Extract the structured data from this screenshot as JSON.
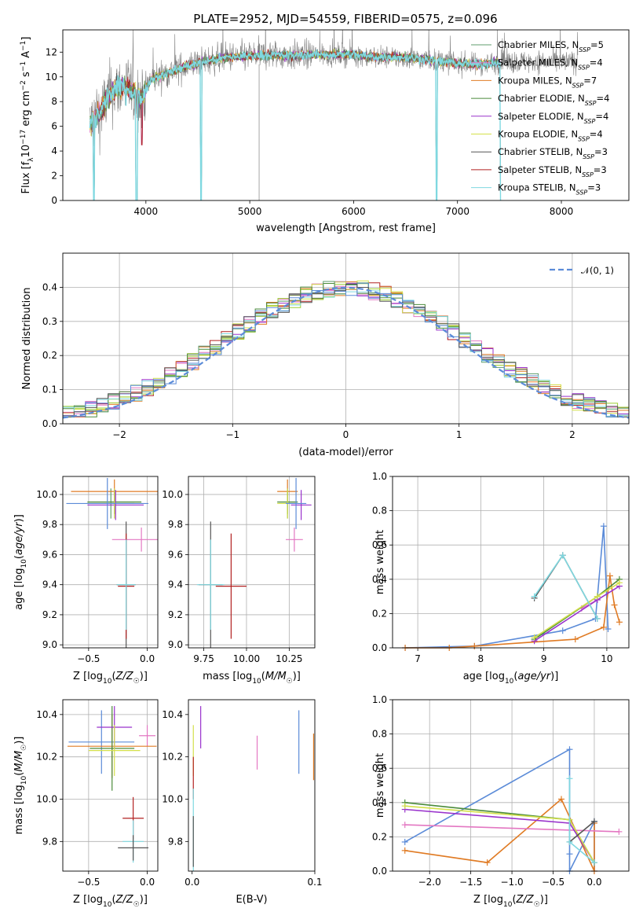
{
  "figure": {
    "title": "PLATE=2952, MJD=54559, FIBERID=0575, z=0.096"
  },
  "series_colors": {
    "Chabrier MILES": "#5f9e6e",
    "Salpeter MILES": "#e377c2",
    "Kroupa MILES": "#e07b24",
    "Chabrier ELODIE": "#4b8b3b",
    "Salpeter ELODIE": "#9932cc",
    "Kroupa ELODIE": "#d4e04a",
    "Chabrier STELIB": "#555555",
    "Salpeter STELIB": "#b22222",
    "Kroupa STELIB": "#7fd8e0",
    "data": "#808080",
    "extra_blue": "#5b8bd8",
    "extra_lime": "#9acd32"
  },
  "chart_data": [
    {
      "id": "spectrum",
      "type": "line",
      "xlabel": "wavelength [Angstrom, rest frame]",
      "ylabel": "Flux [f_λ10^-17 erg cm^-2 s^-1 A^-1]",
      "xlim": [
        3200,
        8650
      ],
      "ylim": [
        0,
        13.8
      ],
      "xticks": [
        4000,
        5000,
        6000,
        7000,
        8000
      ],
      "yticks": [
        0,
        2,
        4,
        6,
        8,
        10,
        12
      ],
      "grid": false,
      "legend_position": "right",
      "legend": [
        {
          "label": "Chabrier MILES, N_SSP=5"
        },
        {
          "label": "Salpeter MILES, N_SSP=4"
        },
        {
          "label": "Kroupa MILES, N_SSP=7"
        },
        {
          "label": "Chabrier ELODIE, N_SSP=4"
        },
        {
          "label": "Salpeter ELODIE, N_SSP=4"
        },
        {
          "label": "Kroupa ELODIE, N_SSP=4"
        },
        {
          "label": "Chabrier STELIB, N_SSP=3"
        },
        {
          "label": "Salpeter STELIB, N_SSP=3"
        },
        {
          "label": "Kroupa STELIB, N_SSP=3"
        }
      ],
      "continuum": [
        [
          3460,
          6.2
        ],
        [
          3550,
          7.0
        ],
        [
          3650,
          8.6
        ],
        [
          3750,
          9.2
        ],
        [
          3850,
          9.0
        ],
        [
          3950,
          8.2
        ],
        [
          4050,
          9.8
        ],
        [
          4200,
          10.3
        ],
        [
          4400,
          10.9
        ],
        [
          4600,
          11.3
        ],
        [
          4800,
          11.6
        ],
        [
          5000,
          11.7
        ],
        [
          5200,
          11.8
        ],
        [
          5400,
          11.7
        ],
        [
          5600,
          11.8
        ],
        [
          5800,
          11.8
        ],
        [
          6000,
          11.8
        ],
        [
          6200,
          11.6
        ],
        [
          6400,
          11.6
        ],
        [
          6600,
          11.5
        ],
        [
          6800,
          11.3
        ],
        [
          7000,
          11.1
        ],
        [
          7200,
          11.0
        ],
        [
          7420,
          11.2
        ]
      ],
      "dips": [
        {
          "x": 3500,
          "to": 0
        },
        {
          "x": 3910,
          "to": 0
        },
        {
          "x": 3960,
          "to": 4.5
        },
        {
          "x": 4530,
          "to": 0
        },
        {
          "x": 6800,
          "to": 0
        },
        {
          "x": 7420,
          "to": 0
        }
      ]
    },
    {
      "id": "residuals",
      "type": "histogram",
      "xlabel": "(data-model)/error",
      "ylabel": "Normed distribution",
      "xlim": [
        -2.5,
        2.5
      ],
      "ylim": [
        0,
        0.5
      ],
      "xticks": [
        -2,
        -1,
        0,
        1,
        2
      ],
      "yticks": [
        0.0,
        0.1,
        0.2,
        0.3,
        0.4
      ],
      "grid": true,
      "legend_position": "top-right",
      "legend": [
        {
          "label": "𝒩(0, 1)"
        }
      ],
      "bin_edges": [
        -2.5,
        -2.4,
        -2.3,
        -2.2,
        -2.1,
        -2.0,
        -1.9,
        -1.8,
        -1.7,
        -1.6,
        -1.5,
        -1.4,
        -1.3,
        -1.2,
        -1.1,
        -1.0,
        -0.9,
        -0.8,
        -0.7,
        -0.6,
        -0.5,
        -0.4,
        -0.3,
        -0.2,
        -0.1,
        0.0,
        0.1,
        0.2,
        0.3,
        0.4,
        0.5,
        0.6,
        0.7,
        0.8,
        0.9,
        1.0,
        1.1,
        1.2,
        1.3,
        1.4,
        1.5,
        1.6,
        1.7,
        1.8,
        1.9,
        2.0,
        2.1,
        2.2,
        2.3,
        2.4,
        2.5
      ]
    },
    {
      "id": "age_vs_Z",
      "type": "errorbar",
      "xlabel": "Z [log10(Z/Z☉)]",
      "ylabel": "age [log10(age/yr)]",
      "xlim": [
        -0.72,
        0.09
      ],
      "ylim": [
        8.98,
        10.12
      ],
      "xticks": [
        -0.5,
        0.0
      ],
      "xticklabels": [
        "−0.5",
        "0.0"
      ],
      "yticks": [
        9.0,
        9.2,
        9.4,
        9.6,
        9.8,
        10.0
      ],
      "grid": true,
      "points": [
        {
          "c": "Chabrier MILES",
          "x": -0.31,
          "y": 9.94,
          "xerr": 0.2,
          "yerr": 0.1
        },
        {
          "c": "Salpeter MILES",
          "x": -0.05,
          "y": 9.7,
          "xerr": 0.25,
          "yerr": 0.08
        },
        {
          "c": "Kroupa MILES",
          "x": -0.28,
          "y": 10.02,
          "xerr": 0.37,
          "yerr": 0.08
        },
        {
          "c": "Chabrier ELODIE",
          "x": -0.28,
          "y": 9.95,
          "xerr": 0.23,
          "yerr": 0.08
        },
        {
          "c": "Salpeter ELODIE",
          "x": -0.27,
          "y": 9.93,
          "xerr": 0.24,
          "yerr": 0.1
        },
        {
          "c": "Kroupa ELODIE",
          "x": -0.28,
          "y": 9.94,
          "xerr": 0.24,
          "yerr": 0.1
        },
        {
          "c": "Chabrier STELIB",
          "x": -0.18,
          "y": 9.4,
          "xerr": 0.08,
          "yerr": 0.42
        },
        {
          "c": "Salpeter STELIB",
          "x": -0.18,
          "y": 9.39,
          "xerr": 0.07,
          "yerr": 0.35
        },
        {
          "c": "Kroupa STELIB",
          "x": -0.18,
          "y": 9.4,
          "xerr": 0.08,
          "yerr": 0.3
        },
        {
          "c": "extra_blue",
          "x": -0.34,
          "y": 9.94,
          "xerr": 0.35,
          "yerr": 0.17
        }
      ]
    },
    {
      "id": "age_vs_mass",
      "type": "errorbar",
      "xlabel": "mass [log10(M/M☉)]",
      "ylabel": "",
      "xlim": [
        9.66,
        10.4
      ],
      "ylim": [
        8.98,
        10.12
      ],
      "xticks": [
        9.75,
        10.0,
        10.25
      ],
      "xticklabels": [
        "9.75",
        "10.00",
        "10.25"
      ],
      "yticks": [
        9.0,
        9.2,
        9.4,
        9.6,
        9.8,
        10.0
      ],
      "grid": true,
      "points": [
        {
          "c": "Chabrier MILES",
          "x": 10.24,
          "y": 9.94,
          "xerr": 0.05,
          "yerr": 0.1
        },
        {
          "c": "Salpeter MILES",
          "x": 10.28,
          "y": 9.7,
          "xerr": 0.05,
          "yerr": 0.08
        },
        {
          "c": "Kroupa MILES",
          "x": 10.24,
          "y": 10.02,
          "xerr": 0.06,
          "yerr": 0.08
        },
        {
          "c": "Chabrier ELODIE",
          "x": 10.24,
          "y": 9.95,
          "xerr": 0.06,
          "yerr": 0.08
        },
        {
          "c": "Salpeter ELODIE",
          "x": 10.32,
          "y": 9.93,
          "xerr": 0.06,
          "yerr": 0.1
        },
        {
          "c": "Kroupa ELODIE",
          "x": 10.24,
          "y": 9.94,
          "xerr": 0.06,
          "yerr": 0.1
        },
        {
          "c": "Chabrier STELIB",
          "x": 9.79,
          "y": 9.4,
          "xerr": 0.07,
          "yerr": 0.42
        },
        {
          "c": "Salpeter STELIB",
          "x": 9.91,
          "y": 9.39,
          "xerr": 0.09,
          "yerr": 0.35
        },
        {
          "c": "Kroupa STELIB",
          "x": 9.79,
          "y": 9.4,
          "xerr": 0.08,
          "yerr": 0.3
        },
        {
          "c": "extra_blue",
          "x": 10.29,
          "y": 9.94,
          "xerr": 0.06,
          "yerr": 0.17
        }
      ]
    },
    {
      "id": "weight_vs_age",
      "type": "line",
      "xlabel": "age [log10(age/yr)]",
      "ylabel": "mass weight",
      "xlim": [
        6.6,
        10.35
      ],
      "ylim": [
        0,
        1
      ],
      "xticks": [
        7,
        8,
        9,
        10
      ],
      "yticks": [
        0.0,
        0.2,
        0.4,
        0.6,
        0.8,
        1.0
      ],
      "grid": true,
      "series": [
        {
          "c": "extra_blue",
          "x": [
            6.8,
            7.9,
            9.3,
            9.82,
            9.95,
            10.02
          ],
          "y": [
            0,
            0.01,
            0.1,
            0.17,
            0.71,
            0.11
          ]
        },
        {
          "c": "Kroupa MILES",
          "x": [
            6.8,
            7.5,
            7.9,
            9.5,
            9.95,
            10.05,
            10.12,
            10.2
          ],
          "y": [
            0,
            0,
            0.01,
            0.05,
            0.12,
            0.42,
            0.25,
            0.15
          ]
        },
        {
          "c": "Salpeter MILES",
          "x": [
            9.6,
            9.85
          ],
          "y": [
            0.23,
            0.28
          ]
        },
        {
          "c": "Chabrier ELODIE",
          "x": [
            8.85,
            9.85,
            10.2
          ],
          "y": [
            0.05,
            0.3,
            0.4
          ]
        },
        {
          "c": "Salpeter ELODIE",
          "x": [
            8.85,
            9.85,
            10.2
          ],
          "y": [
            0.04,
            0.28,
            0.36
          ]
        },
        {
          "c": "Kroupa ELODIE",
          "x": [
            8.85,
            9.85,
            10.2
          ],
          "y": [
            0.06,
            0.3,
            0.38
          ]
        },
        {
          "c": "Chabrier STELIB",
          "x": [
            8.85,
            9.3,
            9.85
          ],
          "y": [
            0.29,
            0.54,
            0.17
          ]
        },
        {
          "c": "Kroupa STELIB",
          "x": [
            8.85,
            9.3,
            9.85
          ],
          "y": [
            0.3,
            0.54,
            0.17
          ]
        }
      ]
    },
    {
      "id": "mass_vs_Z",
      "type": "errorbar",
      "xlabel": "Z [log10(Z/Z☉)]",
      "ylabel": "mass [log10(M/M☉)]",
      "xlim": [
        -0.72,
        0.09
      ],
      "ylim": [
        9.66,
        10.47
      ],
      "xticks": [
        -0.5,
        0.0
      ],
      "xticklabels": [
        "−0.5",
        "0.0"
      ],
      "yticks": [
        9.8,
        10.0,
        10.2,
        10.4
      ],
      "grid": true,
      "points": [
        {
          "c": "extra_blue",
          "x": -0.39,
          "y": 10.27,
          "xerr": 0.28,
          "yerr": 0.15
        },
        {
          "c": "Salpeter MILES",
          "x": 0.0,
          "y": 10.3,
          "xerr": 0.07,
          "yerr": 0.05
        },
        {
          "c": "Kroupa MILES",
          "x": -0.3,
          "y": 10.25,
          "xerr": 0.38,
          "yerr": 0.15
        },
        {
          "c": "Chabrier ELODIE",
          "x": -0.3,
          "y": 10.24,
          "xerr": 0.19,
          "yerr": 0.2
        },
        {
          "c": "Salpeter ELODIE",
          "x": -0.28,
          "y": 10.34,
          "xerr": 0.15,
          "yerr": 0.1
        },
        {
          "c": "Kroupa ELODIE",
          "x": -0.28,
          "y": 10.23,
          "xerr": 0.22,
          "yerr": 0.12
        },
        {
          "c": "Salpeter STELIB",
          "x": -0.12,
          "y": 9.91,
          "xerr": 0.09,
          "yerr": 0.1
        },
        {
          "c": "Kroupa STELIB",
          "x": -0.12,
          "y": 9.8,
          "xerr": 0.09,
          "yerr": 0.1
        },
        {
          "c": "Chabrier STELIB",
          "x": -0.12,
          "y": 9.77,
          "xerr": 0.13,
          "yerr": 0.06
        }
      ]
    },
    {
      "id": "mass_vs_EBV",
      "type": "errorbar",
      "xlabel": "E(B-V)",
      "ylabel": "",
      "xlim": [
        -0.003,
        0.1
      ],
      "ylim": [
        9.66,
        10.47
      ],
      "xticks": [
        0.0,
        0.1
      ],
      "xticklabels": [
        "0.0",
        "0.1"
      ],
      "yticks": [
        9.8,
        10.0,
        10.2,
        10.4
      ],
      "grid": false,
      "points": [
        {
          "c": "Salpeter ELODIE",
          "x": 0.007,
          "y": 10.34,
          "yerr": 0.1
        },
        {
          "c": "Kroupa ELODIE",
          "x": 0.001,
          "y": 10.23,
          "yerr": 0.12
        },
        {
          "c": "Salpeter MILES",
          "x": 0.053,
          "y": 10.22,
          "yerr": 0.08
        },
        {
          "c": "extra_blue",
          "x": 0.087,
          "y": 10.27,
          "yerr": 0.15
        },
        {
          "c": "Kroupa MILES",
          "x": 0.099,
          "y": 10.2,
          "yerr": 0.11
        },
        {
          "c": "Salpeter STELIB",
          "x": 0.001,
          "y": 10.1,
          "yerr": 0.1
        },
        {
          "c": "Kroupa STELIB",
          "x": 0.001,
          "y": 9.85,
          "yerr": 0.2
        },
        {
          "c": "Chabrier STELIB",
          "x": 0.001,
          "y": 9.8,
          "yerr": 0.12
        }
      ]
    },
    {
      "id": "weight_vs_Z",
      "type": "line",
      "xlabel": "Z [log10(Z/Z☉)]",
      "ylabel": "mass weight",
      "xlim": [
        -2.45,
        0.42
      ],
      "ylim": [
        0,
        1
      ],
      "xticks": [
        -2.0,
        -1.5,
        -1.0,
        -0.5,
        0.0
      ],
      "xticklabels": [
        "−2.0",
        "−1.5",
        "−1.0",
        "−0.5",
        "0.0"
      ],
      "yticks": [
        0.0,
        0.2,
        0.4,
        0.6,
        0.8,
        1.0
      ],
      "grid": true,
      "series": [
        {
          "c": "extra_blue",
          "x": [
            -2.3,
            -0.3,
            -0.3,
            -0.3,
            0.0,
            0.0
          ],
          "y": [
            0.17,
            0.71,
            0.1,
            0.0,
            0.29,
            0.0
          ]
        },
        {
          "c": "Kroupa MILES",
          "x": [
            -2.3,
            -1.3,
            -0.4,
            0.0,
            0.0
          ],
          "y": [
            0.12,
            0.05,
            0.42,
            0.0,
            0.28
          ]
        },
        {
          "c": "Salpeter MILES",
          "x": [
            -2.3,
            0.3
          ],
          "y": [
            0.27,
            0.23
          ]
        },
        {
          "c": "Chabrier ELODIE",
          "x": [
            -2.3,
            -0.3,
            0.0
          ],
          "y": [
            0.4,
            0.3,
            0.05
          ]
        },
        {
          "c": "Salpeter ELODIE",
          "x": [
            -2.3,
            -0.3,
            0.0
          ],
          "y": [
            0.36,
            0.28,
            0.05
          ]
        },
        {
          "c": "Kroupa ELODIE",
          "x": [
            -2.3,
            -0.3,
            0.0
          ],
          "y": [
            0.38,
            0.3,
            0.05
          ]
        },
        {
          "c": "Chabrier STELIB",
          "x": [
            -0.3,
            0.0
          ],
          "y": [
            0.17,
            0.29
          ]
        },
        {
          "c": "Kroupa STELIB",
          "x": [
            -0.3,
            -0.3,
            0.0
          ],
          "y": [
            0.54,
            0.17,
            0.05
          ]
        }
      ]
    }
  ]
}
